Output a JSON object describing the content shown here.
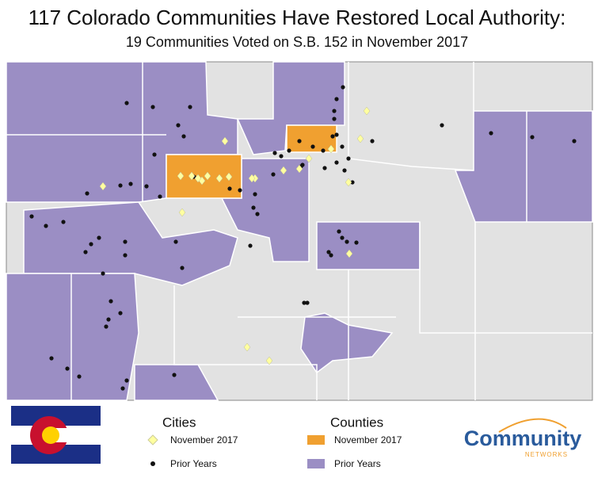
{
  "title": "117 Colorado Communities Have Restored Local Authority:",
  "subtitle": "19 Communities Voted on S.B. 152 in November 2017",
  "legend": {
    "cities": {
      "title": "Cities",
      "items": [
        "November 2017",
        "Prior Years"
      ]
    },
    "counties": {
      "title": "Counties",
      "items": [
        "November 2017",
        "Prior Years"
      ]
    }
  },
  "logo": {
    "main": "Community",
    "sub": "NETWORKS"
  }
}
